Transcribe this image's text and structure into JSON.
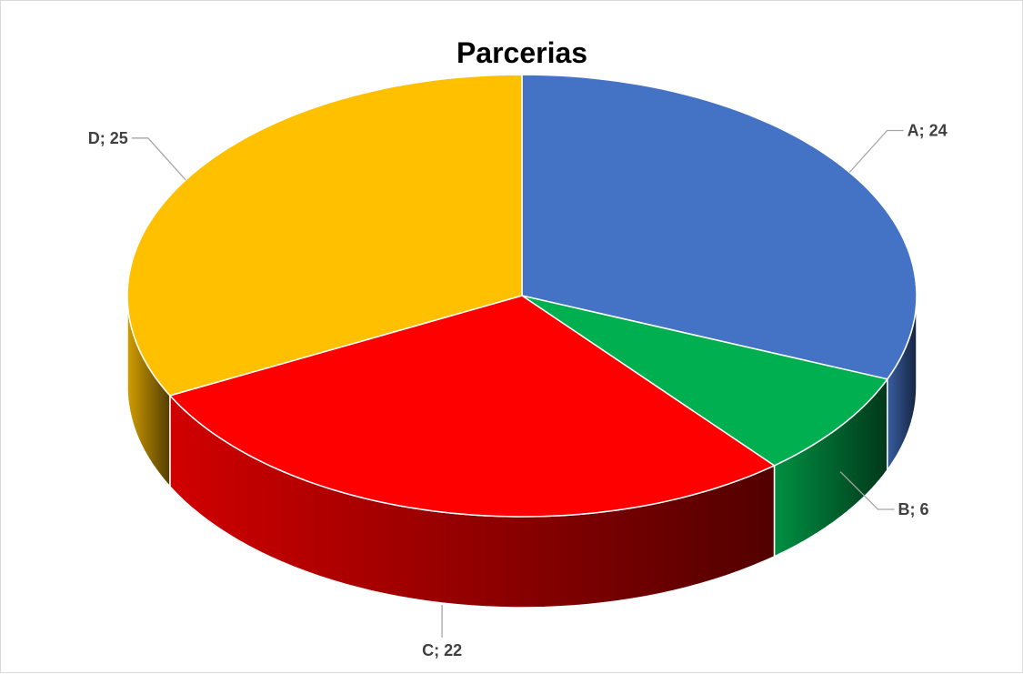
{
  "chart_data": {
    "type": "pie",
    "title": "Parcerias",
    "categories": [
      "A",
      "B",
      "C",
      "D"
    ],
    "values": [
      24,
      6,
      22,
      25
    ],
    "labels": [
      "A; 24",
      "B; 6",
      "C; 22",
      "D; 25"
    ],
    "colors": [
      "#4472C4",
      "#00B050",
      "#FF0000",
      "#FFC000"
    ],
    "style": "3d-pie",
    "legend": "none"
  }
}
